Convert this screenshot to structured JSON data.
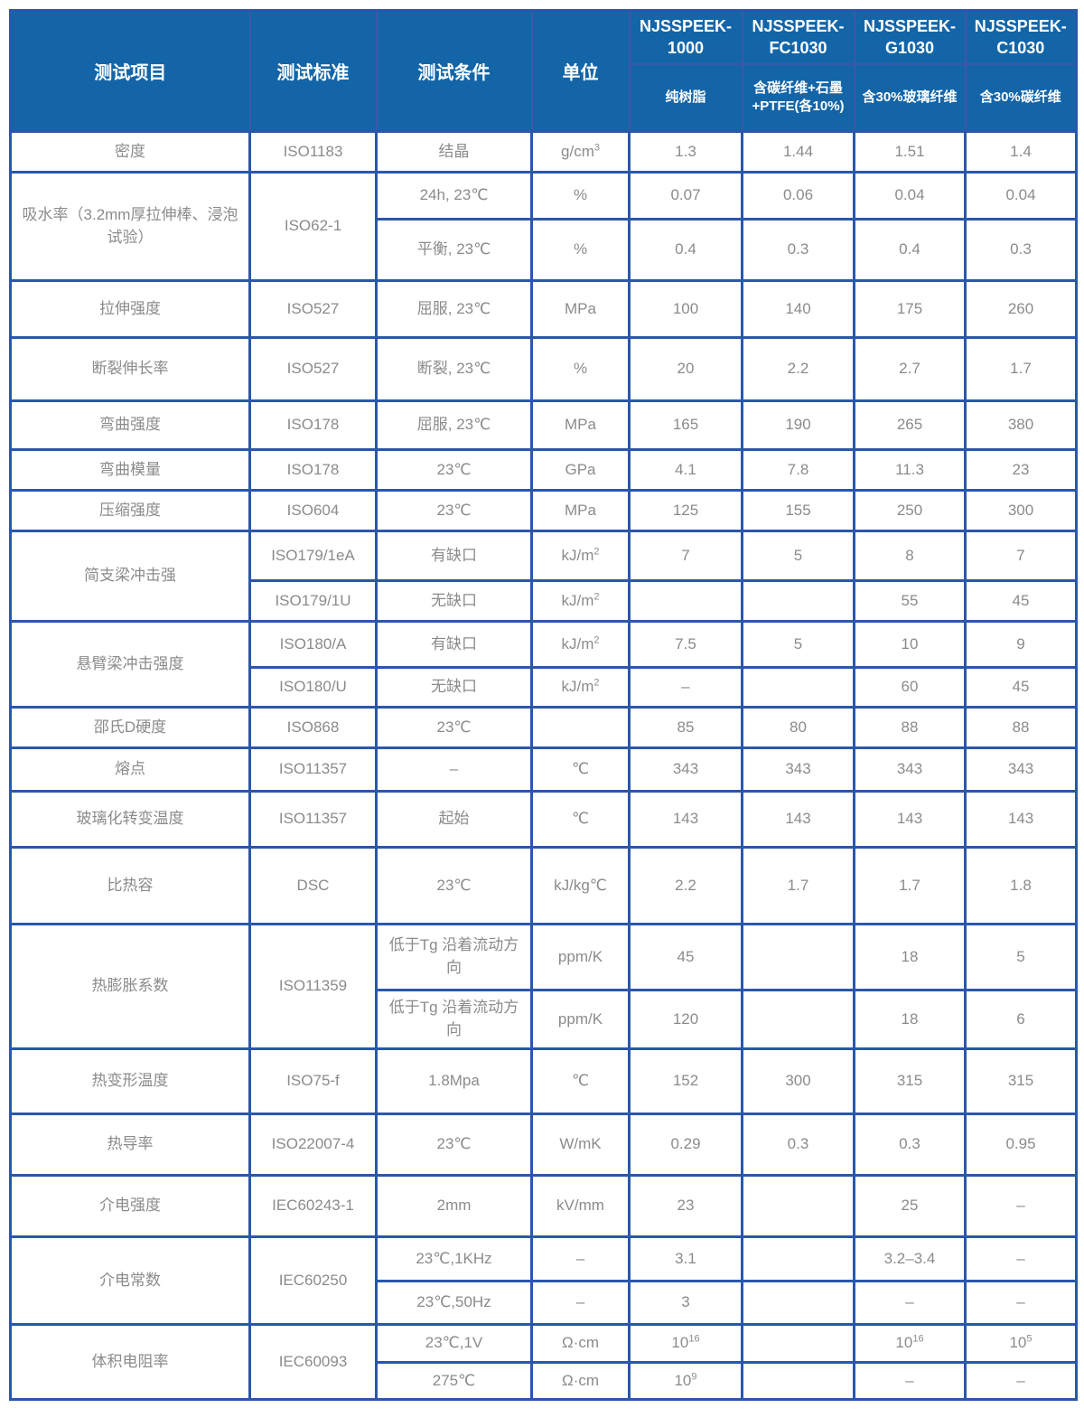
{
  "header": {
    "static_cols": [
      "测试项目",
      "测试标准",
      "测试条件",
      "单位"
    ],
    "products": [
      {
        "name": "NJSSPEEK-\n1000",
        "desc": "纯树脂"
      },
      {
        "name": "NJSSPEEK-\nFC1030",
        "desc": "含碳纤维+石墨\n+PTFE(各10%)"
      },
      {
        "name": "NJSSPEEK-\nG1030",
        "desc": "含30%玻璃纤维"
      },
      {
        "name": "NJSSPEEK-\nC1030",
        "desc": "含30%碳纤维"
      }
    ]
  },
  "colors": {
    "header_bg": "#1365a8",
    "header_divider": "#3f56a8",
    "grid_border": "#2a57ab",
    "body_text": "#8b8b8d"
  },
  "table": {
    "rows": [
      {
        "cells": [
          {
            "t": "密度"
          },
          {
            "t": "ISO1183"
          },
          {
            "t": "结晶"
          },
          {
            "t": "g/cm^3"
          },
          {
            "t": "1.3"
          },
          {
            "t": "1.44"
          },
          {
            "t": "1.51"
          },
          {
            "t": "1.4"
          }
        ]
      },
      {
        "cells": [
          {
            "t": "吸水率（3.2mm厚拉伸棒、浸泡试验）",
            "rs": 2
          },
          {
            "t": "ISO62-1",
            "rs": 2
          },
          {
            "t": "24h, 23℃"
          },
          {
            "t": "%"
          },
          {
            "t": "0.07"
          },
          {
            "t": "0.06"
          },
          {
            "t": "0.04"
          },
          {
            "t": "0.04"
          }
        ]
      },
      {
        "cells": [
          {
            "t": "平衡, 23℃"
          },
          {
            "t": "%"
          },
          {
            "t": "0.4"
          },
          {
            "t": "0.3"
          },
          {
            "t": "0.4"
          },
          {
            "t": "0.3"
          }
        ]
      },
      {
        "cells": [
          {
            "t": "拉伸强度"
          },
          {
            "t": "ISO527"
          },
          {
            "t": "屈服, 23℃"
          },
          {
            "t": "MPa"
          },
          {
            "t": "100"
          },
          {
            "t": "140"
          },
          {
            "t": "175"
          },
          {
            "t": "260"
          }
        ]
      },
      {
        "cells": [
          {
            "t": "断裂伸长率"
          },
          {
            "t": "ISO527"
          },
          {
            "t": "断裂, 23℃"
          },
          {
            "t": "%"
          },
          {
            "t": "20"
          },
          {
            "t": "2.2"
          },
          {
            "t": "2.7"
          },
          {
            "t": "1.7"
          }
        ]
      },
      {
        "cells": [
          {
            "t": "弯曲强度"
          },
          {
            "t": "ISO178"
          },
          {
            "t": "屈服, 23℃"
          },
          {
            "t": "MPa"
          },
          {
            "t": "165"
          },
          {
            "t": "190"
          },
          {
            "t": "265"
          },
          {
            "t": "380"
          }
        ]
      },
      {
        "cells": [
          {
            "t": "弯曲模量"
          },
          {
            "t": "ISO178"
          },
          {
            "t": "23℃"
          },
          {
            "t": "GPa"
          },
          {
            "t": "4.1"
          },
          {
            "t": "7.8"
          },
          {
            "t": "11.3"
          },
          {
            "t": "23"
          }
        ]
      },
      {
        "cells": [
          {
            "t": "压缩强度"
          },
          {
            "t": "ISO604"
          },
          {
            "t": "23℃"
          },
          {
            "t": "MPa"
          },
          {
            "t": "125"
          },
          {
            "t": "155"
          },
          {
            "t": "250"
          },
          {
            "t": "300"
          }
        ]
      },
      {
        "cells": [
          {
            "t": "简支梁冲击强",
            "rs": 2
          },
          {
            "t": "ISO179/1eA"
          },
          {
            "t": "有缺口"
          },
          {
            "t": "kJ/m^2"
          },
          {
            "t": "7"
          },
          {
            "t": "5"
          },
          {
            "t": "8"
          },
          {
            "t": "7"
          }
        ]
      },
      {
        "cells": [
          {
            "t": "ISO179/1U"
          },
          {
            "t": "无缺口"
          },
          {
            "t": "kJ/m^2"
          },
          {
            "t": ""
          },
          {
            "t": ""
          },
          {
            "t": "55"
          },
          {
            "t": "45"
          }
        ]
      },
      {
        "cells": [
          {
            "t": "悬臂梁冲击强度",
            "rs": 2
          },
          {
            "t": "ISO180/A"
          },
          {
            "t": "有缺口"
          },
          {
            "t": "kJ/m^2"
          },
          {
            "t": "7.5"
          },
          {
            "t": "5"
          },
          {
            "t": "10"
          },
          {
            "t": "9"
          }
        ]
      },
      {
        "cells": [
          {
            "t": "ISO180/U"
          },
          {
            "t": "无缺口"
          },
          {
            "t": "kJ/m^2"
          },
          {
            "t": "–"
          },
          {
            "t": ""
          },
          {
            "t": "60"
          },
          {
            "t": "45"
          }
        ]
      },
      {
        "cells": [
          {
            "t": "邵氏D硬度"
          },
          {
            "t": "ISO868"
          },
          {
            "t": "23℃"
          },
          {
            "t": ""
          },
          {
            "t": "85"
          },
          {
            "t": "80"
          },
          {
            "t": "88"
          },
          {
            "t": "88"
          }
        ]
      },
      {
        "cells": [
          {
            "t": "熔点"
          },
          {
            "t": "ISO11357"
          },
          {
            "t": "–"
          },
          {
            "t": "℃"
          },
          {
            "t": "343"
          },
          {
            "t": "343"
          },
          {
            "t": "343"
          },
          {
            "t": "343"
          }
        ]
      },
      {
        "cells": [
          {
            "t": "玻璃化转变温度"
          },
          {
            "t": "ISO11357"
          },
          {
            "t": "起始"
          },
          {
            "t": "℃"
          },
          {
            "t": "143"
          },
          {
            "t": "143"
          },
          {
            "t": "143"
          },
          {
            "t": "143"
          }
        ]
      },
      {
        "cells": [
          {
            "t": "比热容"
          },
          {
            "t": "DSC"
          },
          {
            "t": "23℃"
          },
          {
            "t": "kJ/kg℃"
          },
          {
            "t": "2.2"
          },
          {
            "t": "1.7"
          },
          {
            "t": "1.7"
          },
          {
            "t": "1.8"
          }
        ]
      },
      {
        "cells": [
          {
            "t": "热膨胀系数",
            "rs": 2
          },
          {
            "t": "ISO11359",
            "rs": 2
          },
          {
            "t": "低于Tg 沿着流动方向"
          },
          {
            "t": "ppm/K"
          },
          {
            "t": "45"
          },
          {
            "t": ""
          },
          {
            "t": "18"
          },
          {
            "t": "5"
          }
        ]
      },
      {
        "cells": [
          {
            "t": "低于Tg 沿着流动方向"
          },
          {
            "t": "ppm/K"
          },
          {
            "t": "120"
          },
          {
            "t": ""
          },
          {
            "t": "18"
          },
          {
            "t": "6"
          }
        ]
      },
      {
        "cells": [
          {
            "t": "热变形温度"
          },
          {
            "t": "ISO75-f"
          },
          {
            "t": "1.8Mpa"
          },
          {
            "t": "℃"
          },
          {
            "t": "152"
          },
          {
            "t": "300"
          },
          {
            "t": "315"
          },
          {
            "t": "315"
          }
        ]
      },
      {
        "cells": [
          {
            "t": "热导率"
          },
          {
            "t": "ISO22007-4"
          },
          {
            "t": "23℃"
          },
          {
            "t": "W/mK"
          },
          {
            "t": "0.29"
          },
          {
            "t": "0.3"
          },
          {
            "t": "0.3"
          },
          {
            "t": "0.95"
          }
        ]
      },
      {
        "cells": [
          {
            "t": "介电强度"
          },
          {
            "t": "IEC60243-1"
          },
          {
            "t": "2mm"
          },
          {
            "t": "kV/mm"
          },
          {
            "t": "23"
          },
          {
            "t": ""
          },
          {
            "t": "25"
          },
          {
            "t": "–"
          }
        ]
      },
      {
        "cells": [
          {
            "t": "介电常数",
            "rs": 2
          },
          {
            "t": "IEC60250",
            "rs": 2
          },
          {
            "t": "23℃,1KHz"
          },
          {
            "t": "–"
          },
          {
            "t": "3.1"
          },
          {
            "t": ""
          },
          {
            "t": "3.2–3.4"
          },
          {
            "t": "–"
          }
        ]
      },
      {
        "cells": [
          {
            "t": "23℃,50Hz"
          },
          {
            "t": "–"
          },
          {
            "t": "3"
          },
          {
            "t": ""
          },
          {
            "t": "–"
          },
          {
            "t": "–"
          }
        ]
      },
      {
        "cells": [
          {
            "t": "体积电阻率",
            "rs": 2
          },
          {
            "t": "IEC60093",
            "rs": 2
          },
          {
            "t": "23℃,1V"
          },
          {
            "t": "Ω·cm"
          },
          {
            "t": "10^16"
          },
          {
            "t": ""
          },
          {
            "t": "10^16"
          },
          {
            "t": "10^5"
          }
        ]
      },
      {
        "cells": [
          {
            "t": "275℃"
          },
          {
            "t": "Ω·cm"
          },
          {
            "t": "10^9"
          },
          {
            "t": ""
          },
          {
            "t": "–"
          },
          {
            "t": "–"
          }
        ]
      }
    ]
  }
}
